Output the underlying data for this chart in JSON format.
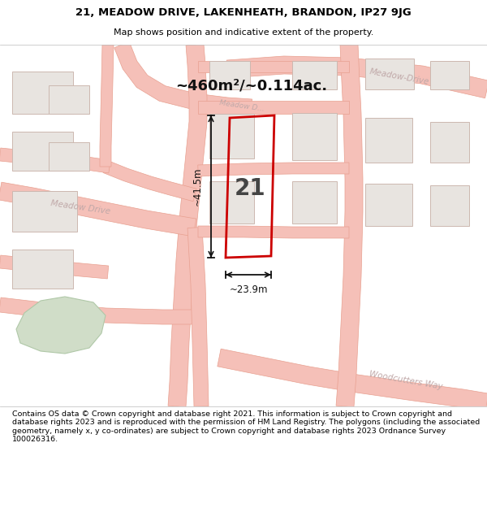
{
  "title_line1": "21, MEADOW DRIVE, LAKENHEATH, BRANDON, IP27 9JG",
  "title_line2": "Map shows position and indicative extent of the property.",
  "area_text": "~460m²/~0.114ac.",
  "width_label": "~23.9m",
  "height_label": "~41.5m",
  "number_label": "21",
  "footer_text": "Contains OS data © Crown copyright and database right 2021. This information is subject to Crown copyright and database rights 2023 and is reproduced with the permission of HM Land Registry. The polygons (including the associated geometry, namely x, y co-ordinates) are subject to Crown copyright and database rights 2023 Ordnance Survey 100026316.",
  "map_bg": "#ffffff",
  "road_color": "#f5c0b8",
  "road_edge": "#e8a090",
  "building_fill": "#e8e4e0",
  "building_outline": "#ccb8b0",
  "plot_outline": "#cc0000",
  "green_fill": "#d0ddc8",
  "green_outline": "#b0c8a8",
  "street_label_color": "#c0a8a8",
  "dim_color": "#111111",
  "title_bg": "#ffffff",
  "footer_bg": "#ffffff",
  "map_road_lw": 1.2,
  "map_road_fill_lw": 0.6
}
